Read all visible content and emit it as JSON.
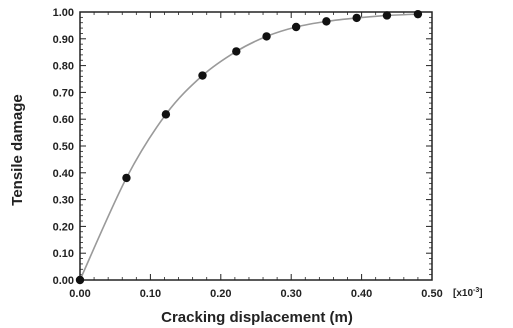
{
  "chart_data": {
    "type": "line",
    "xlabel": "Cracking displacement (m)",
    "ylabel": "Tensile damage",
    "x_scale_note": "[x10",
    "x_scale_exp": "-3",
    "x_scale_close": "]",
    "xlim": [
      0,
      0.5
    ],
    "ylim": [
      0,
      1.0
    ],
    "x_ticks": [
      "0.00",
      "0.10",
      "0.20",
      "0.30",
      "0.40",
      "0.50"
    ],
    "y_ticks": [
      "0.00",
      "0.10",
      "0.20",
      "0.30",
      "0.40",
      "0.50",
      "0.60",
      "0.70",
      "0.80",
      "0.90",
      "1.00"
    ],
    "grid": false,
    "series": [
      {
        "x": [
          0.0,
          0.066,
          0.122,
          0.174,
          0.222,
          0.265,
          0.307,
          0.35,
          0.393,
          0.436,
          0.48
        ],
        "y": [
          0.0,
          0.381,
          0.618,
          0.763,
          0.853,
          0.909,
          0.944,
          0.965,
          0.978,
          0.987,
          0.992
        ]
      }
    ],
    "colors": {
      "line": "#9a9a9a",
      "marker": "#111111",
      "axis": "#222222"
    }
  }
}
